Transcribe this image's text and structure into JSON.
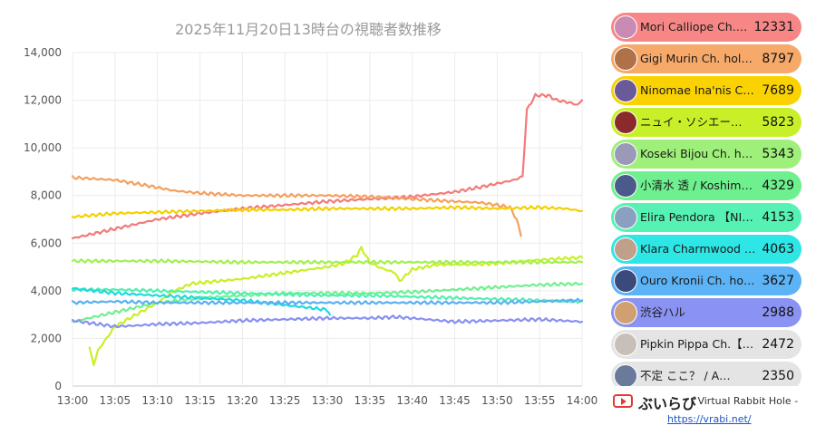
{
  "chart_data": {
    "type": "line",
    "title": "2025年11月20日13時台の視聴者数推移",
    "xlabel": "",
    "ylabel": "",
    "x_ticks": [
      "13:00",
      "13:05",
      "13:10",
      "13:15",
      "13:20",
      "13:25",
      "13:30",
      "13:35",
      "13:40",
      "13:45",
      "13:50",
      "13:55",
      "14:00"
    ],
    "y_ticks": [
      "0",
      "2,000",
      "4,000",
      "6,000",
      "8,000",
      "10,000",
      "12,000",
      "14,000"
    ],
    "ylim": [
      0,
      14000
    ],
    "xlim_minutes": [
      0,
      60
    ],
    "grid": true,
    "legend": "right",
    "series": [
      {
        "name": "Mori Calliope Ch.…",
        "value": "12331",
        "color": "#f47a7a",
        "bg": "#f78787",
        "points": [
          [
            0,
            6200
          ],
          [
            5,
            6600
          ],
          [
            10,
            7000
          ],
          [
            15,
            7250
          ],
          [
            20,
            7450
          ],
          [
            25,
            7600
          ],
          [
            30,
            7750
          ],
          [
            35,
            7850
          ],
          [
            40,
            7950
          ],
          [
            45,
            8150
          ],
          [
            48,
            8350
          ],
          [
            50,
            8500
          ],
          [
            52,
            8650
          ],
          [
            53,
            8800
          ],
          [
            53.5,
            11600
          ],
          [
            54.5,
            12200
          ],
          [
            56,
            12200
          ],
          [
            57,
            12000
          ],
          [
            58.5,
            11900
          ],
          [
            59.5,
            11800
          ],
          [
            60,
            12000
          ]
        ]
      },
      {
        "name": "Gigi Murin Ch. hol…",
        "value": "8797",
        "color": "#f5a05e",
        "bg": "#f7a96a",
        "points": [
          [
            0,
            8750
          ],
          [
            5,
            8650
          ],
          [
            9,
            8400
          ],
          [
            12,
            8200
          ],
          [
            15,
            8100
          ],
          [
            20,
            8000
          ],
          [
            25,
            8000
          ],
          [
            30,
            8000
          ],
          [
            35,
            7950
          ],
          [
            40,
            7850
          ],
          [
            45,
            7750
          ],
          [
            48,
            7700
          ],
          [
            50,
            7600
          ],
          [
            51.5,
            7500
          ],
          [
            52.3,
            7000
          ],
          [
            52.8,
            6300
          ]
        ]
      },
      {
        "name": "Ninomae Ina'nis C…",
        "value": "7689",
        "color": "#f5d000",
        "bg": "#fad200",
        "points": [
          [
            0,
            7100
          ],
          [
            5,
            7250
          ],
          [
            10,
            7300
          ],
          [
            15,
            7350
          ],
          [
            20,
            7400
          ],
          [
            25,
            7400
          ],
          [
            30,
            7450
          ],
          [
            35,
            7450
          ],
          [
            40,
            7450
          ],
          [
            45,
            7500
          ],
          [
            50,
            7450
          ],
          [
            55,
            7500
          ],
          [
            58,
            7450
          ],
          [
            60,
            7350
          ]
        ]
      },
      {
        "name": "ニュイ・ソシエー…",
        "value": "5823",
        "color": "#c8f028",
        "bg": "#c8f028",
        "points": [
          [
            2,
            1600
          ],
          [
            2.5,
            900
          ],
          [
            3,
            1500
          ],
          [
            5,
            2500
          ],
          [
            8,
            3100
          ],
          [
            10,
            3500
          ],
          [
            12,
            4000
          ],
          [
            14,
            4300
          ],
          [
            20,
            4500
          ],
          [
            25,
            4750
          ],
          [
            30,
            5000
          ],
          [
            32,
            5150
          ],
          [
            33.5,
            5500
          ],
          [
            34,
            5800
          ],
          [
            35,
            5200
          ],
          [
            36,
            5000
          ],
          [
            38,
            4750
          ],
          [
            38.5,
            4400
          ],
          [
            40,
            4900
          ],
          [
            43,
            5100
          ],
          [
            47,
            5100
          ],
          [
            50,
            5150
          ],
          [
            55,
            5300
          ],
          [
            60,
            5400
          ]
        ]
      },
      {
        "name": "Koseki Bijou Ch. h…",
        "value": "5343",
        "color": "#a0f050",
        "bg": "#9ef07a",
        "points": [
          [
            0,
            5250
          ],
          [
            10,
            5250
          ],
          [
            20,
            5200
          ],
          [
            30,
            5200
          ],
          [
            40,
            5200
          ],
          [
            50,
            5200
          ],
          [
            55,
            5200
          ],
          [
            60,
            5200
          ]
        ]
      },
      {
        "name": "小清水 透 / Koshim…",
        "value": "4329",
        "color": "#70f090",
        "bg": "#6ef08e",
        "points": [
          [
            0,
            2700
          ],
          [
            5,
            3100
          ],
          [
            10,
            3500
          ],
          [
            15,
            3700
          ],
          [
            20,
            3800
          ],
          [
            25,
            3900
          ],
          [
            30,
            3900
          ],
          [
            35,
            3900
          ],
          [
            40,
            3950
          ],
          [
            45,
            4050
          ],
          [
            50,
            4150
          ],
          [
            55,
            4250
          ],
          [
            60,
            4300
          ]
        ]
      },
      {
        "name": "Elira Pendora 【NI…",
        "value": "4153",
        "color": "#50f0b0",
        "bg": "#56f2b4",
        "points": [
          [
            0,
            4050
          ],
          [
            5,
            4050
          ],
          [
            10,
            4000
          ],
          [
            15,
            3950
          ],
          [
            20,
            3900
          ],
          [
            25,
            3850
          ],
          [
            30,
            3800
          ],
          [
            35,
            3800
          ],
          [
            40,
            3750
          ],
          [
            45,
            3700
          ],
          [
            50,
            3650
          ],
          [
            55,
            3600
          ],
          [
            60,
            3550
          ]
        ]
      },
      {
        "name": "Klara Charmwood …",
        "value": "4063",
        "color": "#20d8e0",
        "bg": "#2ee6e6",
        "points": [
          [
            0,
            4100
          ],
          [
            5,
            3900
          ],
          [
            10,
            3800
          ],
          [
            15,
            3700
          ],
          [
            20,
            3600
          ],
          [
            25,
            3400
          ],
          [
            30,
            3200
          ],
          [
            30.3,
            3000
          ]
        ]
      },
      {
        "name": "Ouro Kronii Ch. ho…",
        "value": "3627",
        "color": "#5ab0f0",
        "bg": "#5cb3f5",
        "points": [
          [
            0,
            3500
          ],
          [
            5,
            3550
          ],
          [
            10,
            3500
          ],
          [
            15,
            3500
          ],
          [
            20,
            3500
          ],
          [
            25,
            3500
          ],
          [
            30,
            3500
          ],
          [
            35,
            3500
          ],
          [
            40,
            3500
          ],
          [
            45,
            3500
          ],
          [
            50,
            3500
          ],
          [
            55,
            3550
          ],
          [
            60,
            3600
          ]
        ]
      },
      {
        "name": "渋谷ハル",
        "value": "2988",
        "color": "#8890f0",
        "bg": "#8a92f2",
        "points": [
          [
            0,
            2750
          ],
          [
            3,
            2600
          ],
          [
            5,
            2500
          ],
          [
            8,
            2550
          ],
          [
            10,
            2600
          ],
          [
            15,
            2650
          ],
          [
            20,
            2750
          ],
          [
            25,
            2800
          ],
          [
            30,
            2850
          ],
          [
            35,
            2850
          ],
          [
            38,
            2900
          ],
          [
            40,
            2850
          ],
          [
            45,
            2700
          ],
          [
            50,
            2750
          ],
          [
            55,
            2800
          ],
          [
            60,
            2700
          ]
        ]
      },
      {
        "name": "Pipkin Pippa Ch.【…",
        "value": "2472",
        "color": "#bbbbbb",
        "bg": "#e4e4e4",
        "points": []
      },
      {
        "name": "不定 ここ？ / A…",
        "value": "2350",
        "color": "#bbbbbb",
        "bg": "#e4e4e4",
        "points": []
      }
    ]
  },
  "legend_avatar_colors": [
    "#c98bb4",
    "#b07048",
    "#6a5a9a",
    "#8a2a2a",
    "#9a9ab8",
    "#4a5a8a",
    "#8aa0c0",
    "#c0a08a",
    "#3a4a7a",
    "#d0a070",
    "#c8c0b8",
    "#6a7a9a"
  ],
  "footer": {
    "icon": "youtube-play-icon",
    "brand": "ぶいらび",
    "tagline": "- Virtual Rabbit Hole -",
    "url": "https://vrabi.net/"
  }
}
